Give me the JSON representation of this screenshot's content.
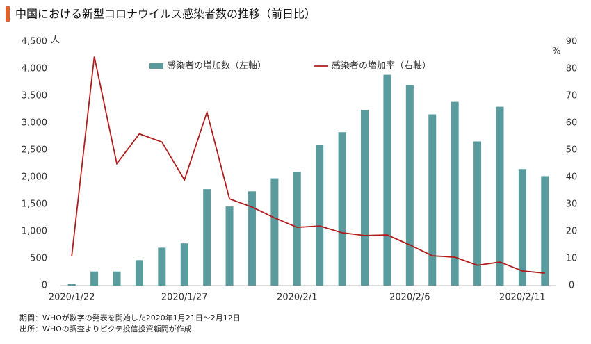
{
  "chart_data": {
    "type": "bar_line",
    "title": "中国における新型コロナウイルス感染者数の推移（前日比）",
    "y_unit": "人",
    "y2_unit": "%",
    "categories": [
      "2020/1/22",
      null,
      null,
      null,
      null,
      "2020/1/27",
      null,
      null,
      null,
      null,
      "2020/2/1",
      null,
      null,
      null,
      null,
      "2020/2/6",
      null,
      null,
      null,
      null,
      "2020/2/11",
      null
    ],
    "series": [
      {
        "name": "感染者の増加数（左軸）",
        "type": "bar",
        "color": "#5a9b9d",
        "axis": "y",
        "values": [
          30,
          260,
          260,
          470,
          700,
          780,
          1780,
          1460,
          1740,
          1980,
          2100,
          2600,
          2830,
          3240,
          3890,
          3700,
          3160,
          3390,
          2660,
          3300,
          2150,
          2020
        ]
      },
      {
        "name": "感染者の増加率（右軸）",
        "type": "line",
        "color": "#b01c1c",
        "axis": "y2",
        "values": [
          11,
          84.5,
          45,
          56,
          53,
          39,
          64,
          32,
          29,
          25,
          21.5,
          22,
          19.5,
          18.5,
          18.7,
          15,
          11,
          10.5,
          7.5,
          8.7,
          5.4,
          4.6
        ]
      }
    ],
    "ylim": [
      0,
      4500
    ],
    "yticks": [
      0,
      500,
      {
        "value": 1000,
        "label": "1,000"
      },
      {
        "value": 1500,
        "label": "1,500"
      },
      {
        "value": 2000,
        "label": "2,000"
      },
      {
        "value": 2500,
        "label": "2,500"
      },
      {
        "value": 3000,
        "label": "3,000"
      },
      {
        "value": 3500,
        "label": "3,500"
      },
      {
        "value": 4000,
        "label": "4,000"
      },
      {
        "value": 4500,
        "label": "4,500"
      }
    ],
    "y2lim": [
      0,
      90
    ],
    "y2ticks": [
      0,
      10,
      20,
      30,
      40,
      50,
      60,
      70,
      80,
      90
    ],
    "notes": [
      "期間：WHOが数字の発表を開始した2020年1月21日～2月12日",
      "出所：WHOの調査よりピクテ投信投資顧問が作成"
    ]
  }
}
